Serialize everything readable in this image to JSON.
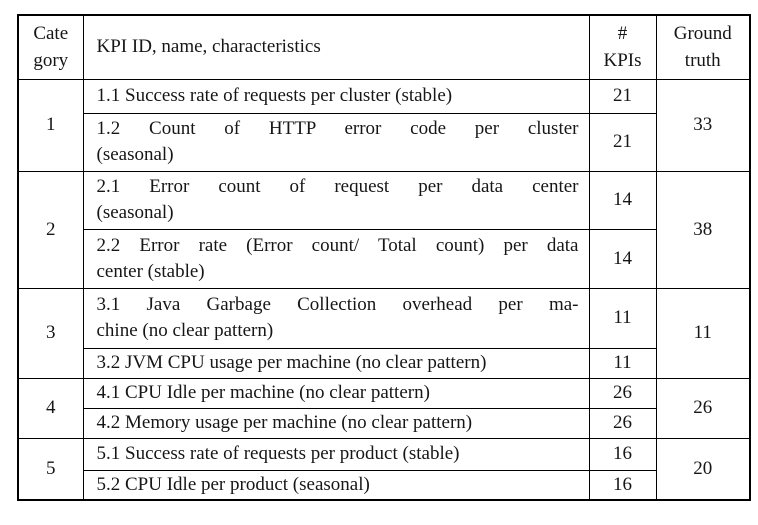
{
  "page": {
    "background_color": "#ffffff",
    "text_color": "#161616",
    "border_color": "#000000"
  },
  "table": {
    "header": {
      "category": [
        "Cate",
        "gory"
      ],
      "kpi": "KPI ID, name, characteristics",
      "kpis_count": [
        "#",
        "KPIs"
      ],
      "ground_truth": [
        "Ground",
        "truth"
      ]
    },
    "categories": [
      {
        "id": "1",
        "ground_truth": "33",
        "kpis": [
          {
            "label": "1.1 Success rate of requests per cluster (stable)",
            "lines": [
              "1.1 Success rate of requests per cluster (stable)"
            ],
            "count": "21"
          },
          {
            "label": "1.2 Count of HTTP error code per cluster (seasonal)",
            "lines": [
              "1.2 Count of HTTP error code per cluster",
              "(seasonal)"
            ],
            "count": "21"
          }
        ]
      },
      {
        "id": "2",
        "ground_truth": "38",
        "kpis": [
          {
            "label": "2.1 Error count of request per data center (seasonal)",
            "lines": [
              "2.1 Error count of request per data center",
              "(seasonal)"
            ],
            "count": "14"
          },
          {
            "label": "2.2 Error rate (Error count/ Total count) per data center (stable)",
            "lines": [
              "2.2 Error rate (Error count/ Total count) per data",
              "center (stable)"
            ],
            "count": "14"
          }
        ]
      },
      {
        "id": "3",
        "ground_truth": "11",
        "kpis": [
          {
            "label": "3.1 Java Garbage Collection overhead per machine (no clear pattern)",
            "lines": [
              "3.1 Java Garbage Collection overhead per ma-",
              "chine (no clear pattern)"
            ],
            "count": "11"
          },
          {
            "label": "3.2 JVM CPU usage per machine (no clear pattern)",
            "lines": [
              "3.2 JVM CPU usage per machine (no clear pattern)"
            ],
            "count": "11"
          }
        ]
      },
      {
        "id": "4",
        "ground_truth": "26",
        "kpis": [
          {
            "label": "4.1 CPU Idle per machine (no clear pattern)",
            "lines": [
              "4.1 CPU Idle per machine (no clear pattern)"
            ],
            "count": "26"
          },
          {
            "label": "4.2 Memory usage per machine (no clear pattern)",
            "lines": [
              "4.2 Memory usage per machine (no clear pattern)"
            ],
            "count": "26"
          }
        ]
      },
      {
        "id": "5",
        "ground_truth": "20",
        "kpis": [
          {
            "label": "5.1 Success rate of requests per product (stable)",
            "lines": [
              "5.1 Success rate of requests per product (stable)"
            ],
            "count": "16"
          },
          {
            "label": "5.2 CPU Idle per product (seasonal)",
            "lines": [
              "5.2 CPU Idle per product (seasonal)"
            ],
            "count": "16"
          }
        ]
      }
    ]
  }
}
